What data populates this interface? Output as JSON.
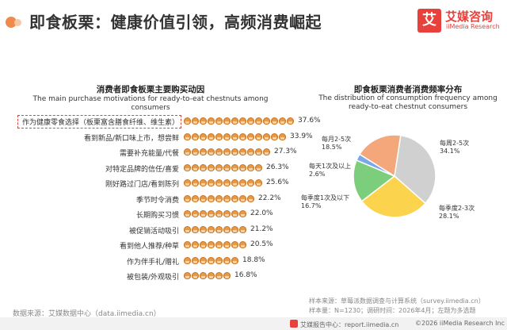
{
  "header": {
    "title": "即食板栗：健康价值引领，高频消费崛起",
    "logo_mark": "艾",
    "logo_cn": "艾媒咨询",
    "logo_en": "iiMedia Research"
  },
  "colors": {
    "accent": "#e8403a",
    "chestnut": "#e79a45",
    "pie": [
      "#d0d0d0",
      "#fcd34d",
      "#7ccd7c",
      "#7aa7e8",
      "#f3a77a"
    ]
  },
  "chart_data": [
    {
      "type": "bar",
      "title": "消费者即食板栗主要购买动因",
      "subtitle": "The main purchase motivations for ready-to-eat chestnuts among consumers",
      "unit": "%",
      "categories": [
        "作为健康零食选择（板栗富含膳食纤维、维生素）",
        "看到新品/新口味上市，想尝鲜",
        "需要补充能量/代餐",
        "对特定品牌的信任/喜爱",
        "刚好路过门店/看到陈列",
        "季节时令消费",
        "长期购买习惯",
        "被促销活动吸引",
        "看到他人推荐/种草",
        "作为伴手礼/赠礼",
        "被包装/外观吸引"
      ],
      "values": [
        37.6,
        33.9,
        27.3,
        26.3,
        25.6,
        22.2,
        22.0,
        21.2,
        20.5,
        18.8,
        16.8
      ],
      "value_labels": [
        "37.6%",
        "33.9%",
        "27.3%",
        "26.3%",
        "25.6%",
        "22.2%",
        "22.0%",
        "21.2%",
        "20.5%",
        "18.8%",
        "16.8%"
      ],
      "highlighted": 0
    },
    {
      "type": "pie",
      "title": "即食板栗消费者消费频率分布",
      "subtitle": "The distribution of consumption frequency among ready-to-eat chestnut consumers",
      "slices": [
        {
          "label": "每周2-5次",
          "value": 34.1,
          "value_label": "34.1%"
        },
        {
          "label": "每季度2-3次",
          "value": 28.1,
          "value_label": "28.1%"
        },
        {
          "label": "每季度1次及以下",
          "value": 16.7,
          "value_label": "16.7%"
        },
        {
          "label": "每天1次及以上",
          "value": 2.6,
          "value_label": "2.6%"
        },
        {
          "label": "每月2-5次",
          "value": 18.5,
          "value_label": "18.5%"
        }
      ]
    }
  ],
  "footer": {
    "source": "数据来源：艾媒数据中心（data.iimedia.cn）",
    "note1": "样本来源：草莓派数据调查与计算系统（survey.iimedia.cn）",
    "note2": "样本量：N=1230；调研时间：2026年4月；左题为多选题",
    "bar_items": [
      "艾媒报告中心：report.iimedia.cn",
      "©2026  iiMedia Research  Inc"
    ]
  }
}
